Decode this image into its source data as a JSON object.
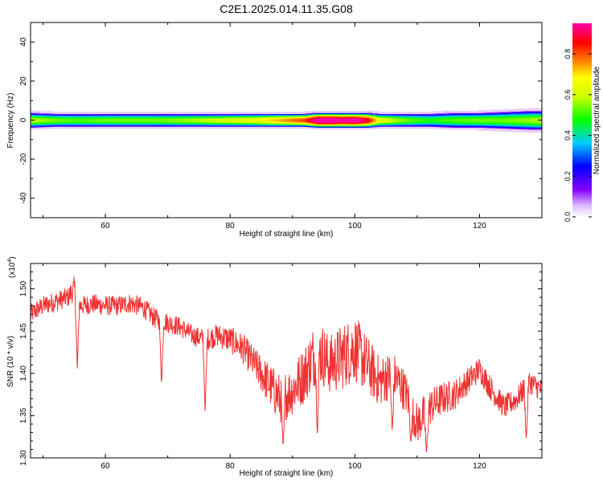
{
  "figure_title": "C2E1.2025.014.11.35.G08",
  "colors": {
    "snr_line": "#ee3333",
    "axis": "#000000",
    "background": "#ffffff",
    "panel_bg": "#ffffff"
  },
  "chart_data": [
    {
      "type": "heatmap",
      "title": "C2E1.2025.014.11.35.G08",
      "xlabel": "Height of straight line (km)",
      "ylabel": "Frequency (Hz)",
      "xlim": [
        48,
        130
      ],
      "ylim": [
        -50,
        50
      ],
      "x_ticks": [
        60,
        80,
        100,
        120
      ],
      "y_ticks": [
        -40,
        -20,
        0,
        20,
        40
      ],
      "grid": false,
      "description_of_band": "narrow band centered at 0 Hz spanning full height range; strongest near 94-102 km",
      "band": {
        "heights": [
          48,
          52,
          56,
          60,
          64,
          68,
          72,
          76,
          80,
          84,
          88,
          92,
          94,
          96,
          98,
          100,
          102,
          104,
          108,
          112,
          116,
          120,
          124,
          128,
          130
        ],
        "peak_amplitude": [
          0.55,
          0.5,
          0.48,
          0.5,
          0.5,
          0.5,
          0.52,
          0.55,
          0.58,
          0.62,
          0.7,
          0.78,
          0.95,
          0.98,
          0.92,
          0.95,
          0.85,
          0.62,
          0.5,
          0.45,
          0.48,
          0.5,
          0.5,
          0.52,
          0.55
        ],
        "halfwidth_hz": [
          4,
          3.5,
          3.5,
          3.5,
          3.5,
          3.5,
          3.5,
          3.5,
          3.5,
          3.5,
          3.5,
          3.5,
          4,
          4,
          4,
          4,
          4,
          3.5,
          3.5,
          3.5,
          4,
          4,
          4.5,
          5,
          5
        ]
      },
      "colorbar": {
        "label": "Normalized spectral amplitude",
        "range": [
          0,
          0.95
        ],
        "ticks": [
          0.0,
          0.2,
          0.4,
          0.6,
          0.8
        ],
        "tick_labels": [
          "0.0",
          "0.2",
          "0.4",
          "0.6",
          "0.8"
        ],
        "colormap": "rainbow (white-violet-blue-cyan-green-yellow-red-magenta)"
      }
    },
    {
      "type": "line",
      "xlabel": "Height of straight line (km)",
      "ylabel": "SNR (10 * v/v)",
      "y_multiplier": "(x10",
      "y_multiplier_exp": "4",
      "y_multiplier_close": ")",
      "xlim": [
        48,
        130
      ],
      "ylim": [
        1.3,
        1.53
      ],
      "x_ticks": [
        60,
        80,
        100,
        120
      ],
      "y_ticks": [
        1.3,
        1.35,
        1.4,
        1.45,
        1.5
      ],
      "y_tick_labels": [
        "1.30",
        "1.35",
        "1.40",
        "1.45",
        "1.50"
      ],
      "grid": false,
      "series": [
        {
          "x": [
            48,
            50,
            52,
            54,
            55,
            56,
            58,
            60,
            62,
            64,
            66,
            68,
            70,
            72,
            74,
            76,
            78,
            80,
            82,
            84,
            86,
            88,
            90,
            92,
            94,
            96,
            98,
            100,
            102,
            104,
            106,
            108,
            110,
            112,
            114,
            116,
            118,
            120,
            122,
            124,
            126,
            128,
            130
          ],
          "values": [
            1.47,
            1.48,
            1.485,
            1.49,
            1.5,
            1.48,
            1.482,
            1.48,
            1.48,
            1.483,
            1.478,
            1.465,
            1.46,
            1.455,
            1.445,
            1.44,
            1.445,
            1.44,
            1.43,
            1.41,
            1.39,
            1.37,
            1.38,
            1.4,
            1.43,
            1.41,
            1.42,
            1.43,
            1.41,
            1.39,
            1.4,
            1.38,
            1.34,
            1.36,
            1.37,
            1.375,
            1.39,
            1.405,
            1.38,
            1.36,
            1.37,
            1.39,
            1.38
          ],
          "noise_amplitude": [
            0.012,
            0.012,
            0.012,
            0.012,
            0.015,
            0.012,
            0.012,
            0.012,
            0.012,
            0.012,
            0.012,
            0.012,
            0.012,
            0.012,
            0.012,
            0.013,
            0.014,
            0.016,
            0.018,
            0.02,
            0.025,
            0.03,
            0.03,
            0.035,
            0.04,
            0.035,
            0.04,
            0.04,
            0.035,
            0.03,
            0.028,
            0.025,
            0.025,
            0.022,
            0.02,
            0.018,
            0.016,
            0.015,
            0.015,
            0.014,
            0.014,
            0.014,
            0.014
          ],
          "dips": [
            {
              "x": 55.5,
              "y": 1.405
            },
            {
              "x": 69,
              "y": 1.385
            },
            {
              "x": 76,
              "y": 1.355
            },
            {
              "x": 88.5,
              "y": 1.31
            },
            {
              "x": 94,
              "y": 1.325
            },
            {
              "x": 106,
              "y": 1.33
            },
            {
              "x": 109,
              "y": 1.318
            },
            {
              "x": 111.5,
              "y": 1.305
            },
            {
              "x": 127.5,
              "y": 1.32
            }
          ]
        }
      ]
    }
  ]
}
